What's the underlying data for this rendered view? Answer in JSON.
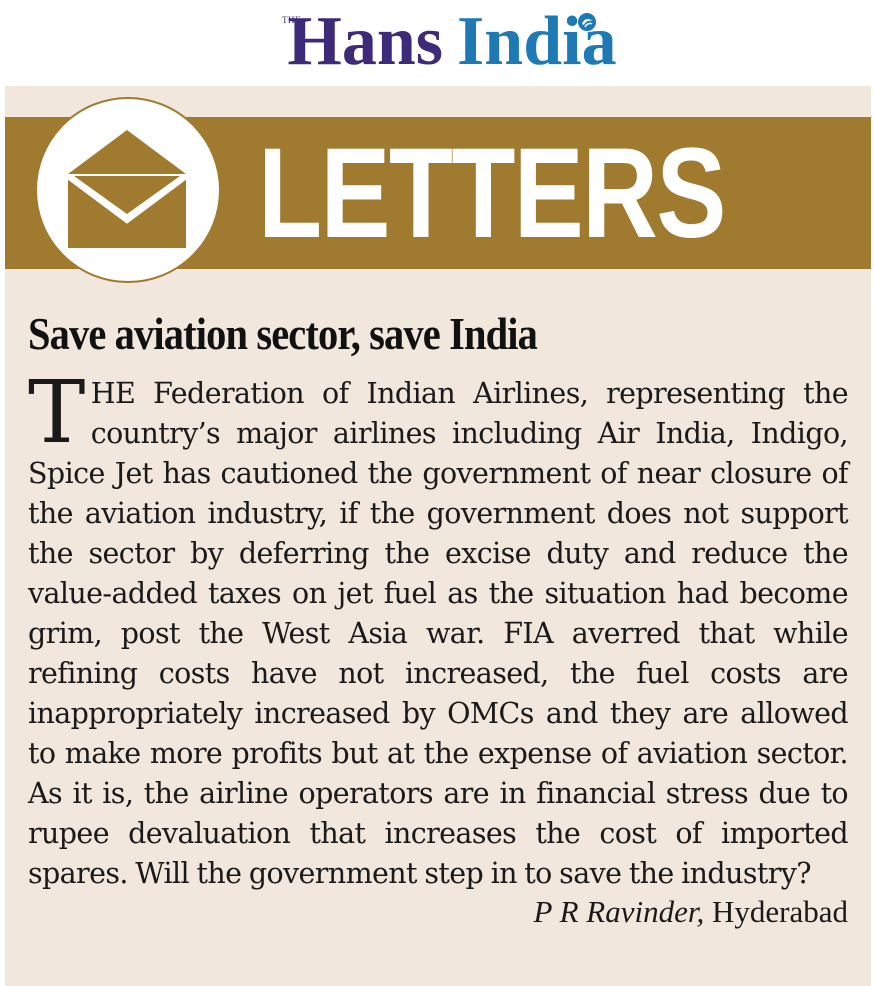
{
  "masthead": {
    "the": "THE",
    "hans": "Hans",
    "india": "India"
  },
  "banner": {
    "title": "LETTERS",
    "icon": "envelope-icon",
    "color": "#a07a2f"
  },
  "letter": {
    "headline": "Save aviation sector, save India",
    "dropcap": "T",
    "body": "HE Federation of Indian Airlines, representing the country’s major airlines including Air India,  Indigo, Spice Jet has cautioned the government of near closure of the aviation industry, if the government does not support the sector by deferring the excise duty and reduce the value-added taxes on jet fuel as the situation had become grim, post the West Asia war. FIA averred that while refining costs have not increased, the fuel costs are inappropriately increased by OMCs and they are allowed to make more profits but at the expense of aviation sector. As it is, the airline operators are in financial stress due to rupee devaluation that increases the cost of imported spares. Will the government step in to save the industry?",
    "author": "P R Ravinder,",
    "city": "Hyderabad"
  },
  "colors": {
    "panel": "#f1e7dd",
    "logo_purple": "#3d2a78",
    "logo_blue": "#1e79b5"
  }
}
